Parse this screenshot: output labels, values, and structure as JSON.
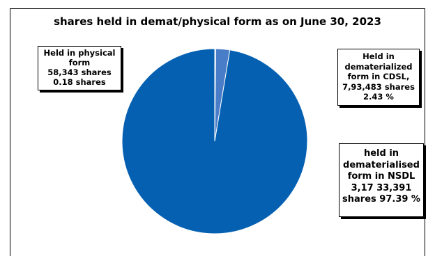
{
  "chart_data": {
    "type": "pie",
    "title": "shares held in demat/physical form as on June 30, 2023",
    "slices": [
      {
        "name": "Held in physical form",
        "shares": 58343,
        "percent": 0.18,
        "color": "#9fb6df",
        "label": "Held in physical\nform\n58,343 shares\n0.18 shares"
      },
      {
        "name": "Held in dematerialized form in CDSL",
        "shares": 793483,
        "percent": 2.43,
        "color": "#4a7dc8",
        "label": "Held in\ndematerialized\nform in CDSL,\n7,93,483 shares\n2.43 %"
      },
      {
        "name": "held in dematerialised form in NSDL",
        "shares": 31733391,
        "percent": 97.39,
        "color": "#0560b2",
        "label": "held in\ndematerialised\nform in NSDL\n3,17 33,391\nshares 97.39 %"
      }
    ]
  }
}
